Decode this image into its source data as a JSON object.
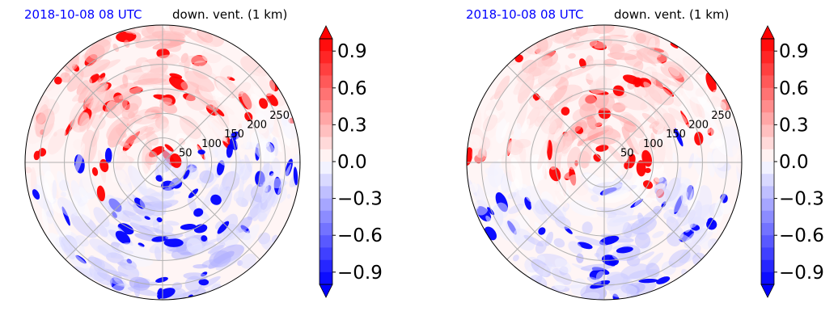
{
  "chart_data": [
    {
      "type": "heatmap",
      "projection": "polar",
      "title_left": "2018-10-08 08 UTC",
      "title_right": "down. vent. (1 km)",
      "radial_ticks": [
        50,
        100,
        150,
        200,
        250
      ],
      "radial_max": 280,
      "grid": true,
      "colorbar": {
        "ticks": [
          "0.9",
          "0.6",
          "0.3",
          "0.0",
          "−0.3",
          "−0.6",
          "−0.9"
        ],
        "tick_values": [
          0.9,
          0.6,
          0.3,
          0.0,
          -0.3,
          -0.6,
          -0.9
        ],
        "range": [
          -1.0,
          1.0
        ],
        "extend": "both",
        "cmap": "bwr"
      },
      "colors": {
        "positive": "#ff0000",
        "negative": "#0000ff",
        "neutral": "#ffffff"
      }
    },
    {
      "type": "heatmap",
      "projection": "polar",
      "title_left": "2018-10-08 08 UTC",
      "title_right": "down. vent. (1 km)",
      "radial_ticks": [
        50,
        100,
        150,
        200,
        250
      ],
      "radial_max": 280,
      "grid": true,
      "colorbar": {
        "ticks": [
          "0.9",
          "0.6",
          "0.3",
          "0.0",
          "−0.3",
          "−0.6",
          "−0.9"
        ],
        "tick_values": [
          0.9,
          0.6,
          0.3,
          0.0,
          -0.3,
          -0.6,
          -0.9
        ],
        "range": [
          -1.0,
          1.0
        ],
        "extend": "both",
        "cmap": "bwr"
      },
      "colors": {
        "positive": "#ff0000",
        "negative": "#0000ff",
        "neutral": "#ffffff"
      }
    }
  ]
}
